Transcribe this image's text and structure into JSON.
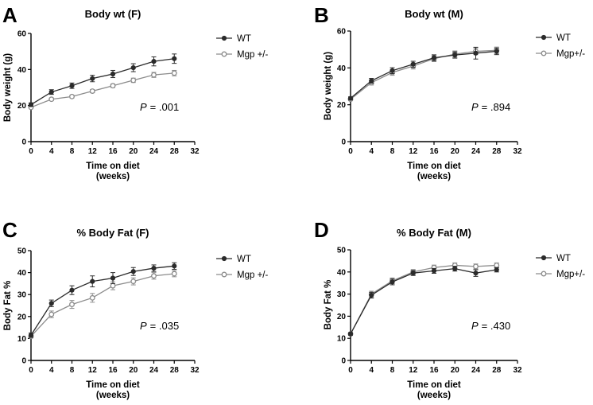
{
  "figure": {
    "colors": {
      "wt": "#2b2b2b",
      "mgp": "#8c8c8c",
      "axis": "#000000",
      "mgp_fill": "#ffffff"
    }
  },
  "chart_data": [
    {
      "panel": "A",
      "type": "line",
      "title": "Body wt (F)",
      "xlabel": [
        "Time on diet",
        "(weeks)"
      ],
      "ylabel": "Body weight (g)",
      "xlim": [
        0,
        32
      ],
      "ylim": [
        0,
        60
      ],
      "xticks": [
        0,
        4,
        8,
        12,
        16,
        20,
        24,
        28,
        32
      ],
      "yticks": [
        0,
        20,
        40,
        60
      ],
      "legend_position": "top-right",
      "p_prefix": "P",
      "p_value": "= .001",
      "x": [
        0,
        4,
        8,
        12,
        16,
        20,
        24,
        28
      ],
      "series": [
        {
          "name": "WT",
          "marker": "filled",
          "values": [
            20.5,
            27.5,
            31,
            35,
            37.5,
            41,
            44.5,
            46
          ],
          "errors": [
            1,
            1.3,
            1.5,
            1.8,
            2,
            2.2,
            2.5,
            2.6
          ]
        },
        {
          "name": "Mgp +/-",
          "marker": "open",
          "values": [
            19,
            23.5,
            25,
            28,
            31,
            34,
            37,
            38
          ],
          "errors": [
            0.6,
            0.7,
            0.8,
            0.9,
            1,
            1.2,
            1.4,
            1.5
          ]
        }
      ]
    },
    {
      "panel": "B",
      "type": "line",
      "title": "Body wt (M)",
      "xlabel": [
        "Time on diet",
        "(weeks)"
      ],
      "ylabel": "Body weight (g)",
      "xlim": [
        0,
        32
      ],
      "ylim": [
        0,
        60
      ],
      "xticks": [
        0,
        4,
        8,
        12,
        16,
        20,
        24,
        28,
        32
      ],
      "yticks": [
        0,
        20,
        40,
        60
      ],
      "legend_position": "top-right",
      "p_prefix": "P",
      "p_value": "= .894",
      "x": [
        0,
        4,
        8,
        12,
        16,
        20,
        24,
        28
      ],
      "series": [
        {
          "name": "WT",
          "marker": "filled",
          "values": [
            23.5,
            33,
            38.5,
            42,
            45.5,
            47,
            48,
            49
          ],
          "errors": [
            0.8,
            1.3,
            1.6,
            1.6,
            1.6,
            1.7,
            3.2,
            1.8
          ]
        },
        {
          "name": "Mgp+/-",
          "marker": "open",
          "values": [
            23,
            32,
            37.5,
            41,
            45,
            47.5,
            49,
            49.5
          ],
          "errors": [
            0.8,
            1.3,
            1.5,
            1.6,
            1.6,
            1.7,
            1.8,
            1.8
          ]
        }
      ]
    },
    {
      "panel": "C",
      "type": "line",
      "title": "% Body Fat (F)",
      "xlabel": [
        "Time on diet",
        "(weeks)"
      ],
      "ylabel": "Body Fat %",
      "xlim": [
        0,
        32
      ],
      "ylim": [
        0,
        50
      ],
      "xticks": [
        0,
        4,
        8,
        12,
        16,
        20,
        24,
        28,
        32
      ],
      "yticks": [
        0,
        10,
        20,
        30,
        40,
        50
      ],
      "legend_position": "top-right",
      "p_prefix": "P",
      "p_value": "= .035",
      "x": [
        0,
        4,
        8,
        12,
        16,
        20,
        24,
        28
      ],
      "series": [
        {
          "name": "WT",
          "marker": "filled",
          "values": [
            11.5,
            26,
            32,
            36,
            37.5,
            40.5,
            42,
            43
          ],
          "errors": [
            1,
            1.5,
            2,
            2.5,
            2.5,
            1.8,
            1.5,
            1.5
          ]
        },
        {
          "name": "Mgp +/-",
          "marker": "open",
          "values": [
            11,
            21,
            25.5,
            28.5,
            34,
            36,
            38.5,
            39.5
          ],
          "errors": [
            0.8,
            1.5,
            1.8,
            2,
            1.8,
            1.6,
            1.5,
            1.4
          ]
        }
      ]
    },
    {
      "panel": "D",
      "type": "line",
      "title": "% Body Fat (M)",
      "xlabel": [
        "Time on diet",
        "(weeks)"
      ],
      "ylabel": "Body Fat %",
      "xlim": [
        0,
        32
      ],
      "ylim": [
        0,
        50
      ],
      "xticks": [
        0,
        4,
        8,
        12,
        16,
        20,
        24,
        28,
        32
      ],
      "yticks": [
        0,
        10,
        20,
        30,
        40,
        50
      ],
      "legend_position": "top-right",
      "p_prefix": "P",
      "p_value": "= .430",
      "x": [
        0,
        4,
        8,
        12,
        16,
        20,
        24,
        28
      ],
      "series": [
        {
          "name": "WT",
          "marker": "filled",
          "values": [
            12,
            29.5,
            35.5,
            39.5,
            40.5,
            41.5,
            39.5,
            41
          ],
          "errors": [
            0.6,
            1.3,
            1.3,
            1.1,
            1.1,
            1.1,
            1.5,
            1
          ]
        },
        {
          "name": "Mgp+/-",
          "marker": "open",
          "values": [
            12,
            30,
            36,
            40,
            42,
            43,
            42.5,
            43
          ],
          "errors": [
            0.6,
            1.3,
            1.3,
            1.1,
            1.1,
            1.1,
            1.1,
            1.1
          ]
        }
      ]
    }
  ]
}
